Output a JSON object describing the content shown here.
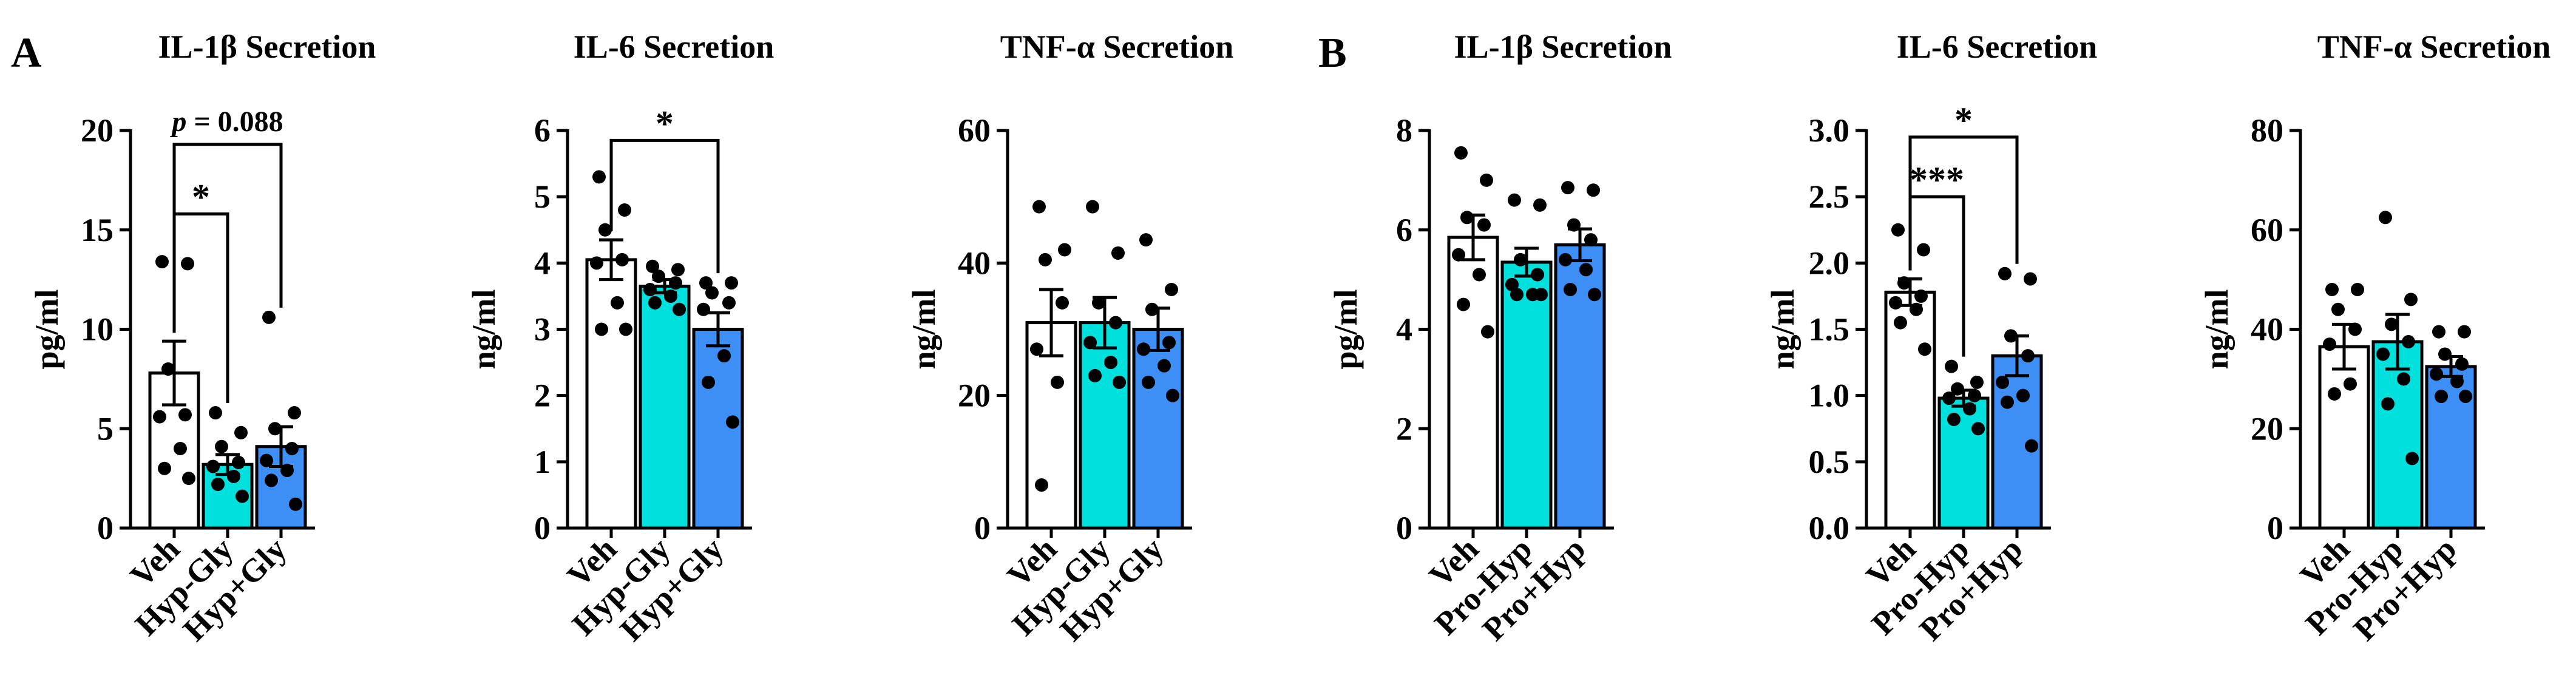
{
  "panel_labels": [
    "A",
    "B"
  ],
  "colors": {
    "veh": "#ffffff",
    "group2": "#00e0dc",
    "group3": "#3d8ef5",
    "outline": "#000000",
    "point": "#000000"
  },
  "chart_data": [
    {
      "type": "bar",
      "title": "IL-1β Secretion",
      "ylabel": "pg/ml",
      "categories": [
        "Veh",
        "Hyp-Gly",
        "Hyp+Gly"
      ],
      "values": [
        7.8,
        3.2,
        4.1
      ],
      "sem": [
        1.6,
        0.5,
        1.0
      ],
      "ylim": [
        0,
        20
      ],
      "yticks": [
        0,
        5,
        10,
        15,
        20
      ],
      "ytick_labels": [
        "0",
        "5",
        "10",
        "15",
        "20"
      ],
      "points": [
        [
          13.4,
          13.3,
          8.0,
          5.7,
          5.6,
          4.0,
          3.0,
          2.5
        ],
        [
          5.8,
          4.8,
          4.1,
          3.3,
          3.1,
          2.6,
          2.2,
          1.6
        ],
        [
          10.6,
          5.8,
          5.0,
          4.0,
          3.4,
          2.9,
          2.4,
          1.2
        ]
      ],
      "annotations": [
        {
          "from": 0,
          "to": 1,
          "label": "*",
          "y": 15.8
        },
        {
          "from": 0,
          "to": 2,
          "label": "= 0.088",
          "prefix": "p",
          "y": 19.3
        }
      ]
    },
    {
      "type": "bar",
      "title": "IL-6 Secretion",
      "ylabel": "ng/ml",
      "categories": [
        "Veh",
        "Hyp-Gly",
        "Hyp+Gly"
      ],
      "values": [
        4.05,
        3.65,
        3.0
      ],
      "sem": [
        0.3,
        0.1,
        0.25
      ],
      "ylim": [
        0,
        6
      ],
      "yticks": [
        0,
        1,
        2,
        3,
        4,
        5,
        6
      ],
      "ytick_labels": [
        "0",
        "1",
        "2",
        "3",
        "4",
        "5",
        "6"
      ],
      "points": [
        [
          5.3,
          4.8,
          4.5,
          4.05,
          4.0,
          3.4,
          3.0,
          3.0
        ],
        [
          3.95,
          3.9,
          3.8,
          3.7,
          3.6,
          3.5,
          3.4,
          3.3
        ],
        [
          3.7,
          3.7,
          3.55,
          3.4,
          3.3,
          2.6,
          2.2,
          1.6
        ]
      ],
      "annotations": [
        {
          "from": 0,
          "to": 2,
          "label": "*",
          "y": 5.85
        }
      ]
    },
    {
      "type": "bar",
      "title": "TNF-α Secretion",
      "ylabel": "ng/ml",
      "categories": [
        "Veh",
        "Hyp-Gly",
        "Hyp+Gly"
      ],
      "values": [
        31.0,
        31.0,
        30.0
      ],
      "sem": [
        5.0,
        3.8,
        3.2
      ],
      "ylim": [
        0,
        60
      ],
      "yticks": [
        0,
        20,
        40,
        60
      ],
      "ytick_labels": [
        "0",
        "20",
        "40",
        "60"
      ],
      "points": [
        [
          48.5,
          42.0,
          40.5,
          34.0,
          27.0,
          22.0,
          6.5
        ],
        [
          48.5,
          41.5,
          34.0,
          31.0,
          28.0,
          25.0,
          23.0,
          22.0
        ],
        [
          43.5,
          36.0,
          33.0,
          28.0,
          27.0,
          24.5,
          22.0,
          20.0
        ]
      ],
      "annotations": []
    },
    {
      "type": "bar",
      "title": "IL-1β Secretion",
      "ylabel": "pg/ml",
      "categories": [
        "Veh",
        "Pro-Hyp",
        "Pro+Hyp"
      ],
      "values": [
        5.85,
        5.35,
        5.7
      ],
      "sem": [
        0.45,
        0.28,
        0.32
      ],
      "ylim": [
        0,
        8
      ],
      "yticks": [
        0,
        2,
        4,
        6,
        8
      ],
      "ytick_labels": [
        "0",
        "2",
        "4",
        "6",
        "8"
      ],
      "points": [
        [
          7.55,
          7.0,
          6.25,
          6.1,
          5.5,
          5.1,
          4.5,
          3.95
        ],
        [
          6.6,
          6.5,
          5.4,
          5.1,
          4.9,
          4.7,
          4.7,
          4.7
        ],
        [
          6.85,
          6.8,
          6.1,
          5.8,
          5.4,
          5.2,
          4.8,
          4.7
        ]
      ],
      "annotations": []
    },
    {
      "type": "bar",
      "title": "IL-6 Secretion",
      "ylabel": "ng/ml",
      "categories": [
        "Veh",
        "Pro-Hyp",
        "Pro+Hyp"
      ],
      "values": [
        1.78,
        0.98,
        1.3
      ],
      "sem": [
        0.1,
        0.06,
        0.15
      ],
      "ylim": [
        0,
        3.0
      ],
      "yticks": [
        0,
        0.5,
        1.0,
        1.5,
        2.0,
        2.5,
        3.0
      ],
      "ytick_labels": [
        "0.0",
        "0.5",
        "1.0",
        "1.5",
        "2.0",
        "2.5",
        "3.0"
      ],
      "points": [
        [
          2.25,
          2.1,
          1.85,
          1.75,
          1.7,
          1.65,
          1.55,
          1.35
        ],
        [
          1.22,
          1.1,
          1.05,
          1.0,
          0.98,
          0.9,
          0.82,
          0.75
        ],
        [
          1.92,
          1.88,
          1.45,
          1.3,
          1.1,
          1.0,
          0.95,
          0.62
        ]
      ],
      "annotations": [
        {
          "from": 0,
          "to": 1,
          "label": "***",
          "y": 2.5
        },
        {
          "from": 0,
          "to": 2,
          "label": "*",
          "y": 2.95
        }
      ]
    },
    {
      "type": "bar",
      "title": "TNF-α Secretion",
      "ylabel": "ng/ml",
      "categories": [
        "Veh",
        "Pro-Hyp",
        "Pro+Hyp"
      ],
      "values": [
        36.5,
        37.5,
        32.5
      ],
      "sem": [
        4.5,
        5.5,
        2.0
      ],
      "ylim": [
        0,
        80
      ],
      "yticks": [
        0,
        20,
        40,
        60,
        80
      ],
      "ytick_labels": [
        "0",
        "20",
        "40",
        "60",
        "80"
      ],
      "points": [
        [
          48.0,
          48.0,
          44.0,
          40.0,
          37.0,
          29.0,
          27.0
        ],
        [
          62.5,
          46.0,
          41.0,
          37.5,
          35.0,
          30.0,
          25.0,
          14.0
        ],
        [
          39.5,
          39.5,
          35.0,
          33.0,
          31.0,
          29.5,
          26.5,
          26.5
        ]
      ],
      "annotations": []
    }
  ]
}
